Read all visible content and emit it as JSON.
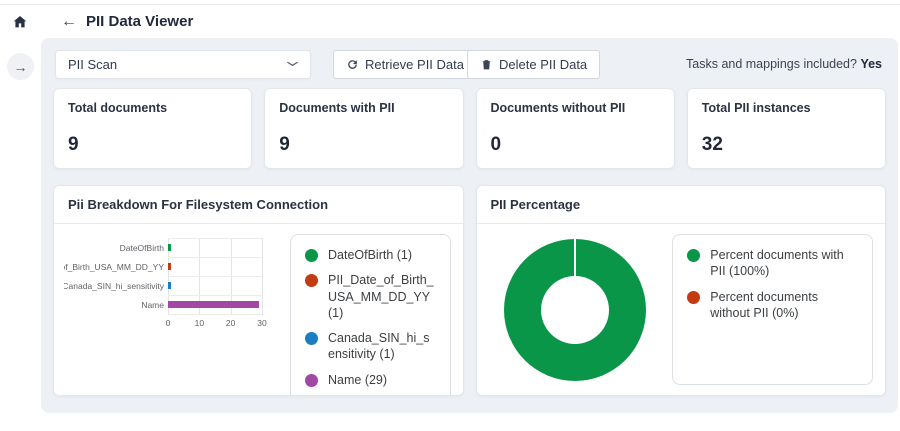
{
  "header": {
    "back_arrow": "←",
    "title": "PII Data Viewer"
  },
  "sidebar": {
    "expand_arrow": "→"
  },
  "toolbar": {
    "scan_select_value": "PII Scan",
    "chevron": "⌄",
    "retrieve_label": "Retrieve PII Data",
    "delete_label": "Delete PII Data",
    "tasks_note": "Tasks and mappings included? ",
    "tasks_note_value": "Yes"
  },
  "stats": [
    {
      "label": "Total documents",
      "value": "9"
    },
    {
      "label": "Documents with PII",
      "value": "9"
    },
    {
      "label": "Documents without PII",
      "value": "0"
    },
    {
      "label": "Total PII instances",
      "value": "32"
    }
  ],
  "chart_data": [
    {
      "type": "bar",
      "orientation": "horizontal",
      "title": "Pii Breakdown For Filesystem Connection",
      "categories": [
        "DateOfBirth",
        "PII_Date_of_Birth_USA_MM_DD_YY",
        "Canada_SIN_hi_sensitivity",
        "Name"
      ],
      "values": [
        1,
        1,
        1,
        29
      ],
      "colors": [
        "#0a9648",
        "#c43a13",
        "#1b7ec2",
        "#a347a5"
      ],
      "xlim": [
        0,
        30
      ],
      "xticks": [
        0,
        10,
        20,
        30
      ],
      "grid": true,
      "legend_position": "right",
      "legend": [
        "DateOfBirth (1)",
        "PII_Date_of_Birth_USA_MM_DD_YY (1)",
        "Canada_SIN_hi_sensitivity (1)",
        "Name (29)"
      ]
    },
    {
      "type": "pie",
      "donut": true,
      "title": "PII Percentage",
      "labels": [
        "Percent documents with PII (100%)",
        "Percent documents without PII (0%)"
      ],
      "values": [
        100,
        0
      ],
      "colors": [
        "#0a9648",
        "#c43a13"
      ],
      "legend_position": "right",
      "legend": [
        "Percent documents with PII (100%)",
        "Percent documents without PII (0%)"
      ]
    }
  ]
}
